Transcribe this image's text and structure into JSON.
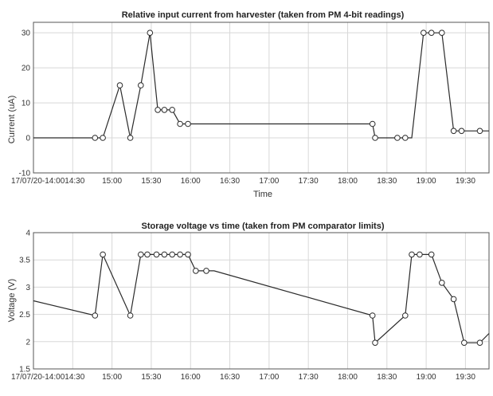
{
  "chart_data": [
    {
      "type": "line",
      "title": "Relative input current from harvester (taken from PM 4-bit readings)",
      "xlabel": "Time",
      "ylabel": "Current (uA)",
      "xlim": [
        "14:00",
        "19:48"
      ],
      "ylim": [
        -10,
        33
      ],
      "x_ticks": [
        "14:30",
        "15:00",
        "15:30",
        "16:00",
        "16:30",
        "17:00",
        "17:30",
        "18:00",
        "18:30",
        "19:00",
        "19:30"
      ],
      "x_tick_labels": [
        "17/07/20-14:0014:30",
        "15:00",
        "15:30",
        "16:00",
        "16:30",
        "17:00",
        "17:30",
        "18:00",
        "18:30",
        "19:00",
        "19:30"
      ],
      "y_ticks": [
        -10,
        0,
        10,
        20,
        30
      ],
      "y_tick_labels": [
        "-10",
        "0",
        "10",
        "20",
        "30"
      ],
      "grid": true,
      "series": [
        {
          "x": [
            "14:00",
            "14:47",
            "14:50",
            "14:53",
            "15:06",
            "15:14",
            "15:22",
            "15:29",
            "15:35",
            "15:40",
            "15:46",
            "15:52",
            "15:58",
            "16:04",
            "16:09",
            "16:14",
            "16:20",
            "18:19",
            "18:21",
            "18:24",
            "18:38",
            "18:44",
            "18:49",
            "18:58",
            "19:04",
            "19:12",
            "19:21",
            "19:27",
            "19:33",
            "19:41",
            "19:48"
          ],
          "values": [
            0,
            0,
            0,
            0,
            15,
            0,
            15,
            30,
            8,
            8,
            8,
            4,
            4,
            4,
            4,
            4,
            4,
            4,
            0,
            0,
            0,
            0,
            0,
            30,
            30,
            30,
            2,
            2,
            2,
            2,
            2
          ],
          "markers": [
            false,
            true,
            false,
            true,
            true,
            true,
            true,
            true,
            true,
            true,
            true,
            true,
            true,
            false,
            false,
            false,
            false,
            true,
            true,
            false,
            true,
            true,
            false,
            true,
            true,
            true,
            true,
            true,
            false,
            true,
            false
          ]
        }
      ]
    },
    {
      "type": "line",
      "title": "Storage voltage vs time (taken from PM comparator limits)",
      "xlabel": "",
      "ylabel": "Voltage (V)",
      "xlim": [
        "14:00",
        "19:48"
      ],
      "ylim": [
        1.5,
        4
      ],
      "x_ticks": [
        "14:30",
        "15:00",
        "15:30",
        "16:00",
        "16:30",
        "17:00",
        "17:30",
        "18:00",
        "18:30",
        "19:00",
        "19:30"
      ],
      "x_tick_labels": [
        "17/07/20-14:0014:30",
        "15:00",
        "15:30",
        "16:00",
        "16:30",
        "17:00",
        "17:30",
        "18:00",
        "18:30",
        "19:00",
        "19:30"
      ],
      "y_ticks": [
        1.5,
        2,
        2.5,
        3,
        3.5,
        4
      ],
      "y_tick_labels": [
        "1.5",
        "2",
        "2.5",
        "3",
        "3.5",
        "4"
      ],
      "grid": true,
      "series": [
        {
          "x": [
            "14:00",
            "14:47",
            "14:53",
            "15:14",
            "15:22",
            "15:27",
            "15:34",
            "15:40",
            "15:46",
            "15:52",
            "15:58",
            "16:04",
            "16:12",
            "16:18",
            "18:19",
            "18:21",
            "18:44",
            "18:49",
            "18:55",
            "19:04",
            "19:12",
            "19:21",
            "19:29",
            "19:35",
            "19:41",
            "19:48"
          ],
          "values": [
            2.75,
            2.48,
            3.6,
            2.48,
            3.6,
            3.6,
            3.6,
            3.6,
            3.6,
            3.6,
            3.6,
            3.3,
            3.3,
            3.3,
            2.48,
            1.98,
            2.48,
            3.6,
            3.6,
            3.6,
            3.08,
            2.78,
            1.98,
            1.98,
            1.98,
            2.15
          ],
          "markers": [
            false,
            true,
            true,
            true,
            true,
            true,
            true,
            true,
            true,
            true,
            true,
            true,
            true,
            false,
            true,
            true,
            true,
            true,
            true,
            true,
            true,
            true,
            true,
            false,
            true,
            false
          ]
        }
      ]
    }
  ]
}
